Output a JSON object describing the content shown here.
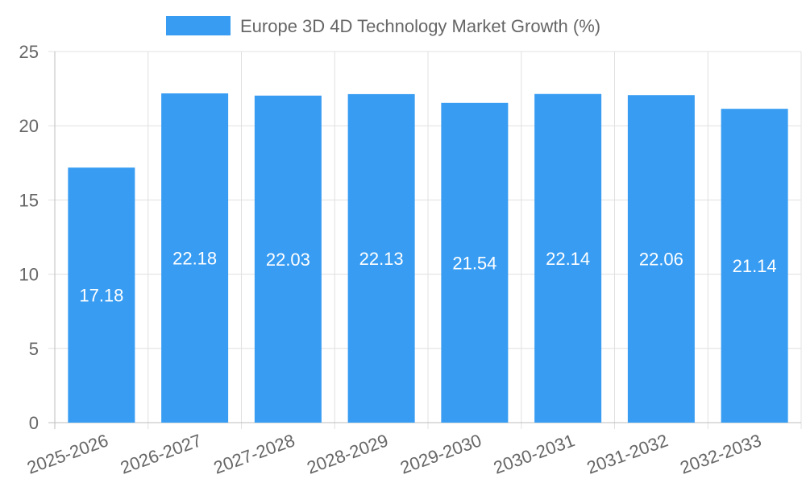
{
  "chart_data": {
    "type": "bar",
    "categories": [
      "2025-2026",
      "2026-2027",
      "2027-2028",
      "2028-2029",
      "2029-2030",
      "2030-2031",
      "2031-2032",
      "2032-2033"
    ],
    "series": [
      {
        "name": "Europe 3D 4D Technology Market Growth (%)",
        "values": [
          17.18,
          22.18,
          22.03,
          22.13,
          21.54,
          22.14,
          22.06,
          21.14
        ],
        "color": "#379cf2"
      }
    ],
    "data_labels": [
      "17.18",
      "22.18",
      "22.03",
      "22.13",
      "21.54",
      "22.14",
      "22.06",
      "21.14"
    ],
    "y_ticks": [
      0,
      5,
      10,
      15,
      20,
      25
    ],
    "ylim": [
      0,
      25
    ],
    "grid": true,
    "legend_position": "top",
    "colors": {
      "bar": "#379cf2",
      "grid": "#e0e0e0",
      "axis": "#bdbdbd",
      "text": "#666666",
      "data_label": "#ffffff"
    }
  }
}
